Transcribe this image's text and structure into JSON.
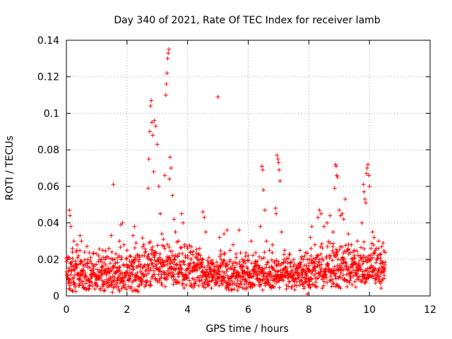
{
  "chart_data": {
    "type": "scatter",
    "title": "Day 340 of 2021, Rate Of TEC Index for receiver lamb",
    "xlabel": "GPS time / hours",
    "ylabel": "ROTI / TECUs",
    "xlim": [
      0,
      12
    ],
    "ylim": [
      0,
      0.14
    ],
    "x_ticks": [
      0,
      2,
      4,
      6,
      8,
      10,
      12
    ],
    "x_tick_labels": [
      "0",
      "2",
      "4",
      "6",
      "8",
      "10",
      "12"
    ],
    "y_ticks": [
      0,
      0.02,
      0.04,
      0.06,
      0.08,
      0.1,
      0.12,
      0.14
    ],
    "y_tick_labels": [
      "0",
      "0.02",
      "0.04",
      "0.06",
      "0.08",
      "0.1",
      "0.12",
      "0.14"
    ],
    "grid": true,
    "marker": "+",
    "color": "#ff0000",
    "series": [
      {
        "name": "ROTI",
        "points": [
          [
            0.02,
            0.012
          ],
          [
            0.05,
            0.021
          ],
          [
            0.08,
            0.009
          ],
          [
            0.1,
            0.047
          ],
          [
            0.12,
            0.044
          ],
          [
            0.15,
            0.038
          ],
          [
            0.18,
            0.016
          ],
          [
            0.2,
            0.026
          ],
          [
            0.25,
            0.03
          ],
          [
            0.3,
            0.019
          ],
          [
            0.35,
            0.028
          ],
          [
            0.4,
            0.022
          ],
          [
            0.45,
            0.033
          ],
          [
            0.5,
            0.03
          ],
          [
            0.55,
            0.014
          ],
          [
            0.6,
            0.024
          ],
          [
            0.7,
            0.018
          ],
          [
            0.8,
            0.021
          ],
          [
            0.9,
            0.016
          ],
          [
            1.0,
            0.023
          ],
          [
            1.1,
            0.02
          ],
          [
            1.2,
            0.025
          ],
          [
            1.3,
            0.017
          ],
          [
            1.4,
            0.026
          ],
          [
            1.48,
            0.033
          ],
          [
            1.52,
            0.002
          ],
          [
            1.55,
            0.061
          ],
          [
            1.6,
            0.02
          ],
          [
            1.7,
            0.021
          ],
          [
            1.75,
            0.03
          ],
          [
            1.8,
            0.039
          ],
          [
            1.85,
            0.04
          ],
          [
            1.9,
            0.028
          ],
          [
            2.0,
            0.025
          ],
          [
            2.1,
            0.022
          ],
          [
            2.2,
            0.033
          ],
          [
            2.25,
            0.038
          ],
          [
            2.3,
            0.029
          ],
          [
            2.4,
            0.02
          ],
          [
            2.5,
            0.022
          ],
          [
            2.6,
            0.024
          ],
          [
            2.7,
            0.059
          ],
          [
            2.72,
            0.075
          ],
          [
            2.75,
            0.09
          ],
          [
            2.78,
            0.104
          ],
          [
            2.8,
            0.107
          ],
          [
            2.82,
            0.095
          ],
          [
            2.85,
            0.088
          ],
          [
            2.88,
            0.068
          ],
          [
            2.9,
            0.096
          ],
          [
            2.95,
            0.093
          ],
          [
            3.0,
            0.083
          ],
          [
            3.05,
            0.06
          ],
          [
            3.1,
            0.045
          ],
          [
            3.15,
            0.034
          ],
          [
            3.2,
            0.031
          ],
          [
            3.25,
            0.066
          ],
          [
            3.28,
            0.11
          ],
          [
            3.3,
            0.116
          ],
          [
            3.32,
            0.122
          ],
          [
            3.34,
            0.13
          ],
          [
            3.36,
            0.133
          ],
          [
            3.38,
            0.135
          ],
          [
            3.4,
            0.064
          ],
          [
            3.42,
            0.076
          ],
          [
            3.45,
            0.07
          ],
          [
            3.5,
            0.055
          ],
          [
            3.55,
            0.042
          ],
          [
            3.6,
            0.035
          ],
          [
            3.7,
            0.03
          ],
          [
            3.8,
            0.045
          ],
          [
            3.85,
            0.04
          ],
          [
            3.9,
            0.027
          ],
          [
            4.0,
            0.022
          ],
          [
            4.1,
            0.024
          ],
          [
            4.2,
            0.018
          ],
          [
            4.3,
            0.021
          ],
          [
            4.4,
            0.026
          ],
          [
            4.5,
            0.046
          ],
          [
            4.55,
            0.043
          ],
          [
            4.6,
            0.035
          ],
          [
            4.7,
            0.021
          ],
          [
            4.8,
            0.018
          ],
          [
            4.9,
            0.016
          ],
          [
            5.0,
            0.109
          ],
          [
            5.05,
            0.032
          ],
          [
            5.1,
            0.02
          ],
          [
            5.2,
            0.034
          ],
          [
            5.3,
            0.036
          ],
          [
            5.4,
            0.025
          ],
          [
            5.5,
            0.028
          ],
          [
            5.6,
            0.021
          ],
          [
            5.7,
            0.036
          ],
          [
            5.8,
            0.02
          ],
          [
            5.9,
            0.018
          ],
          [
            6.0,
            0.022
          ],
          [
            6.1,
            0.03
          ],
          [
            6.2,
            0.016
          ],
          [
            6.3,
            0.019
          ],
          [
            6.4,
            0.038
          ],
          [
            6.45,
            0.071
          ],
          [
            6.48,
            0.069
          ],
          [
            6.5,
            0.058
          ],
          [
            6.55,
            0.047
          ],
          [
            6.6,
            0.03
          ],
          [
            6.7,
            0.025
          ],
          [
            6.8,
            0.028
          ],
          [
            6.9,
            0.048
          ],
          [
            6.92,
            0.045
          ],
          [
            6.95,
            0.077
          ],
          [
            6.98,
            0.075
          ],
          [
            7.0,
            0.073
          ],
          [
            7.02,
            0.069
          ],
          [
            7.05,
            0.063
          ],
          [
            7.1,
            0.035
          ],
          [
            7.2,
            0.025
          ],
          [
            7.3,
            0.018
          ],
          [
            7.4,
            0.016
          ],
          [
            7.5,
            0.02
          ],
          [
            7.6,
            0.015
          ],
          [
            7.7,
            0.017
          ],
          [
            7.8,
            0.014
          ],
          [
            7.9,
            0.012
          ],
          [
            7.95,
            0.001
          ],
          [
            8.0,
            0.018
          ],
          [
            8.05,
            0.032
          ],
          [
            8.1,
            0.038
          ],
          [
            8.2,
            0.028
          ],
          [
            8.3,
            0.043
          ],
          [
            8.35,
            0.047
          ],
          [
            8.4,
            0.045
          ],
          [
            8.5,
            0.038
          ],
          [
            8.6,
            0.04
          ],
          [
            8.7,
            0.044
          ],
          [
            8.8,
            0.035
          ],
          [
            8.85,
            0.059
          ],
          [
            8.88,
            0.072
          ],
          [
            8.9,
            0.071
          ],
          [
            8.92,
            0.066
          ],
          [
            8.95,
            0.065
          ],
          [
            9.0,
            0.047
          ],
          [
            9.05,
            0.044
          ],
          [
            9.1,
            0.045
          ],
          [
            9.15,
            0.042
          ],
          [
            9.2,
            0.053
          ],
          [
            9.3,
            0.034
          ],
          [
            9.4,
            0.028
          ],
          [
            9.5,
            0.025
          ],
          [
            9.6,
            0.03
          ],
          [
            9.7,
            0.022
          ],
          [
            9.75,
            0.04
          ],
          [
            9.8,
            0.061
          ],
          [
            9.82,
            0.057
          ],
          [
            9.85,
            0.053
          ],
          [
            9.88,
            0.051
          ],
          [
            9.9,
            0.067
          ],
          [
            9.92,
            0.07
          ],
          [
            9.95,
            0.072
          ],
          [
            9.98,
            0.066
          ],
          [
            10.0,
            0.06
          ],
          [
            10.1,
            0.035
          ],
          [
            10.15,
            0.032
          ],
          [
            10.2,
            0.025
          ],
          [
            10.3,
            0.03
          ],
          [
            10.4,
            0.027
          ],
          [
            10.45,
            0.029
          ],
          [
            10.5,
            0.015
          ]
        ]
      }
    ],
    "noise_band": {
      "description": "dense band of low ROTI samples",
      "segments": [
        {
          "x_start": 0.0,
          "x_end": 2.5,
          "y_min": 0.002,
          "y_max": 0.028,
          "step": 0.02
        },
        {
          "x_start": 2.5,
          "x_end": 4.5,
          "y_min": 0.004,
          "y_max": 0.034,
          "step": 0.02
        },
        {
          "x_start": 4.5,
          "x_end": 8.0,
          "y_min": 0.003,
          "y_max": 0.026,
          "step": 0.02
        },
        {
          "x_start": 8.0,
          "x_end": 10.5,
          "y_min": 0.004,
          "y_max": 0.032,
          "step": 0.02
        }
      ]
    }
  }
}
